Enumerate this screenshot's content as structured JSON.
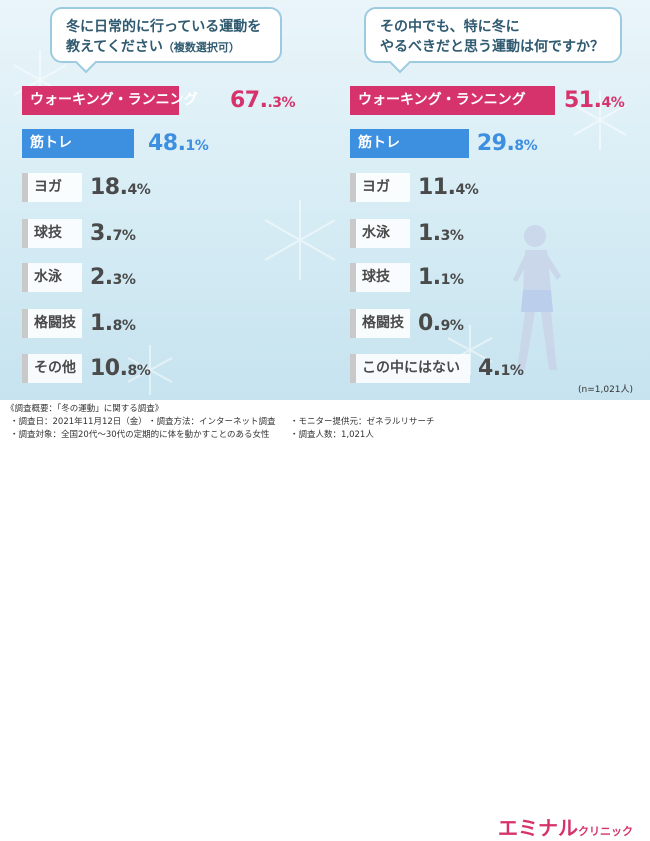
{
  "colors": {
    "pink": "#d6336c",
    "blue": "#3d8fe0",
    "gray": "#ececec",
    "grayBorder": "#c9c9c9",
    "text_dark": "#4a4a4a"
  },
  "chart_data": [
    {
      "type": "bar",
      "title": "冬に日常的に行っている運動を教えてください",
      "title_line1": "冬に日常的に行っている運動を",
      "title_line2": "教えてください",
      "title_note": "（複数選択可）",
      "categories": [
        "ウォーキング・ランニング",
        "筋トレ",
        "ヨガ",
        "球技",
        "水泳",
        "格闘技",
        "その他"
      ],
      "values": [
        67.3,
        48.1,
        18.4,
        3.7,
        2.3,
        1.8,
        10.8
      ],
      "value_labels": [
        [
          "67.",
          ".3%"
        ],
        [
          "48.",
          "1%"
        ],
        [
          "18.",
          "4%"
        ],
        [
          "3.",
          "7%"
        ],
        [
          "2.",
          "3%"
        ],
        [
          "1.",
          "8%"
        ],
        [
          "10.",
          "8%"
        ]
      ],
      "unit": "%"
    },
    {
      "type": "bar",
      "title": "その中でも、特に冬にやるべきだと思う運動は何ですか？",
      "title_line1": "その中でも、特に冬に",
      "title_line2": "やるべきだと思う運動は何ですか？",
      "categories": [
        "ウォーキング・ランニング",
        "筋トレ",
        "ヨガ",
        "水泳",
        "球技",
        "格闘技",
        "この中にはない"
      ],
      "values": [
        51.4,
        29.8,
        11.4,
        1.3,
        1.1,
        0.9,
        4.1
      ],
      "value_labels": [
        [
          "51.",
          "4%"
        ],
        [
          "29.",
          "8%"
        ],
        [
          "11.",
          "4%"
        ],
        [
          "1.",
          "3%"
        ],
        [
          "1.",
          "1%"
        ],
        [
          "0.",
          "9%"
        ],
        [
          "4.",
          "1%"
        ]
      ],
      "unit": "%"
    }
  ],
  "sample_note": "(n=1,021人)",
  "footer": {
    "heading": "《調査概要：「冬の運動」に関する調査》",
    "items": [
      "・調査日：2021年11月12日（金）",
      "・調査方法：インターネット調査",
      "・モニター提供元：ゼネラルリサーチ",
      "・調査対象：全国20代～30代の定期的に体を動かすことのある女性",
      "・調査人数：1,021人"
    ]
  },
  "logo": {
    "main": "エミナル",
    "sub": "クリニック"
  }
}
